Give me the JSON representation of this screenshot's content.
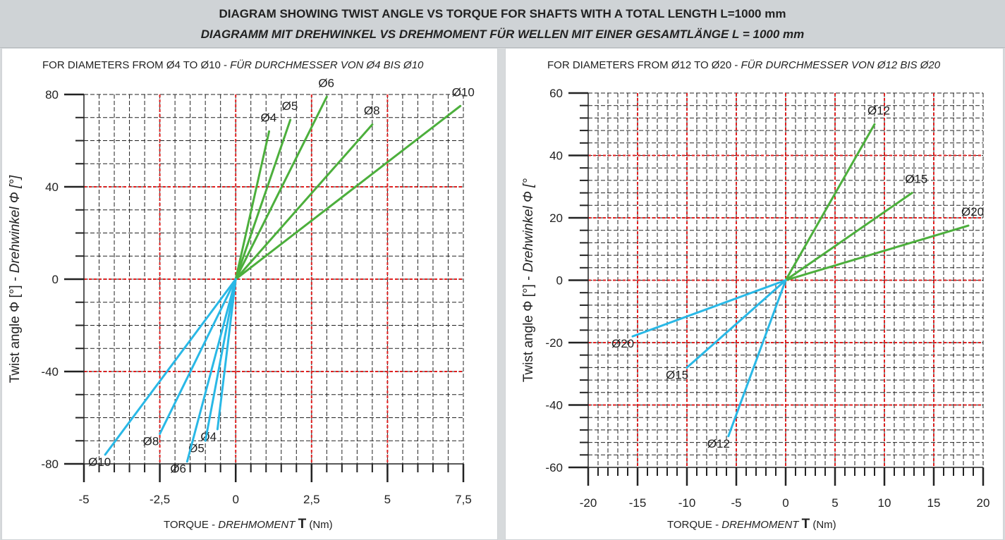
{
  "header": {
    "title_en": "DIAGRAM SHOWING TWIST ANGLE VS TORQUE FOR SHAFTS WITH A TOTAL LENGTH L=1000 mm",
    "title_de": "DIAGRAMM MIT DREHWINKEL VS DREHMOMENT FÜR WELLEN MIT EINER GESAMTLÄNGE L = 1000 mm"
  },
  "colors": {
    "positive": "#4caf3c",
    "negative": "#29b8e6",
    "major_grid": "#e02020",
    "minor_grid": "#222222"
  },
  "chart_data": [
    {
      "type": "line",
      "subtitle_en": "FOR DIAMETERS FROM Ø4 TO Ø10 - ",
      "subtitle_de": "FÜR DURCHMESSER VON Ø4 BIS Ø10",
      "xlabel_pre": "TORQUE - ",
      "xlabel_it": "DREHMOMENT ",
      "xlabel_sym": "T",
      "xlabel_unit": " (Nm)",
      "ylabel_pre": "Twist angle Φ [°] - ",
      "ylabel_it": "Drehwinkel Φ [°]",
      "xlim": [
        -5,
        7.5
      ],
      "ylim": [
        -80,
        80
      ],
      "x_ticks": [
        -5,
        -2.5,
        0,
        2.5,
        5,
        7.5
      ],
      "x_tick_labels": [
        "-5",
        "-2,5",
        "0",
        "2,5",
        "5",
        "7,5"
      ],
      "y_ticks": [
        -80,
        -40,
        0,
        40,
        80
      ],
      "y_tick_labels": [
        "-80",
        "-40",
        "0",
        "40",
        "80"
      ],
      "major_x": [
        -2.5,
        0,
        2.5,
        5
      ],
      "major_y": [
        -40,
        0,
        40
      ],
      "minor_x_step": 0.5,
      "minor_y_step": 10,
      "series": [
        {
          "name": "Ø4",
          "kind": "positive",
          "x": [
            0,
            1.1
          ],
          "y": [
            0,
            64
          ]
        },
        {
          "name": "Ø5",
          "kind": "positive",
          "x": [
            0,
            1.8
          ],
          "y": [
            0,
            69
          ]
        },
        {
          "name": "Ø6",
          "kind": "positive",
          "x": [
            0,
            3.0
          ],
          "y": [
            0,
            79
          ]
        },
        {
          "name": "Ø8",
          "kind": "positive",
          "x": [
            0,
            4.5
          ],
          "y": [
            0,
            67
          ]
        },
        {
          "name": "Ø10",
          "kind": "positive",
          "x": [
            0,
            7.4
          ],
          "y": [
            0,
            75
          ]
        },
        {
          "name": "Ø4",
          "kind": "negative",
          "x": [
            0,
            -0.6
          ],
          "y": [
            0,
            -65
          ]
        },
        {
          "name": "Ø5",
          "kind": "negative",
          "x": [
            0,
            -1.0
          ],
          "y": [
            0,
            -70
          ]
        },
        {
          "name": "Ø6",
          "kind": "negative",
          "x": [
            0,
            -1.6
          ],
          "y": [
            0,
            -79
          ]
        },
        {
          "name": "Ø8",
          "kind": "negative",
          "x": [
            0,
            -2.5
          ],
          "y": [
            0,
            -67
          ]
        },
        {
          "name": "Ø10",
          "kind": "negative",
          "x": [
            0,
            -4.3
          ],
          "y": [
            0,
            -76
          ]
        }
      ]
    },
    {
      "type": "line",
      "subtitle_en": "FOR DIAMETERS FROM Ø12 TO Ø20 - ",
      "subtitle_de": "FÜR DURCHMESSER VON Ø12 BIS Ø20",
      "xlabel_pre": "TORQUE - ",
      "xlabel_it": "DREHMOMENT ",
      "xlabel_sym": "T",
      "xlabel_unit": " (Nm)",
      "ylabel_pre": "Twist angle Φ [°] - ",
      "ylabel_it": "Drehwinkel Φ [°",
      "xlim": [
        -20,
        20
      ],
      "ylim": [
        -60,
        60
      ],
      "x_ticks": [
        -20,
        -15,
        -10,
        -5,
        0,
        5,
        10,
        15,
        20
      ],
      "x_tick_labels": [
        "-20",
        "-15",
        "-10",
        "-5",
        "0",
        "5",
        "10",
        "15",
        "20"
      ],
      "y_ticks": [
        -60,
        -40,
        -20,
        0,
        20,
        40,
        60
      ],
      "y_tick_labels": [
        "-60",
        "-40",
        "-20",
        "0",
        "20",
        "40",
        "60"
      ],
      "major_x": [
        -15,
        -10,
        -5,
        0,
        5,
        10,
        15
      ],
      "major_y": [
        -40,
        -20,
        0,
        20,
        40
      ],
      "minor_x_step": 1,
      "minor_y_step": 4,
      "series": [
        {
          "name": "Ø12",
          "kind": "positive",
          "x": [
            0,
            9.0
          ],
          "y": [
            0,
            50
          ]
        },
        {
          "name": "Ø15",
          "kind": "positive",
          "x": [
            0,
            12.8
          ],
          "y": [
            0,
            28
          ]
        },
        {
          "name": "Ø20",
          "kind": "positive",
          "x": [
            0,
            18.5
          ],
          "y": [
            0,
            17.5
          ]
        },
        {
          "name": "Ø12",
          "kind": "negative",
          "x": [
            0,
            -5.8
          ],
          "y": [
            0,
            -50
          ]
        },
        {
          "name": "Ø15",
          "kind": "negative",
          "x": [
            0,
            -10.0
          ],
          "y": [
            0,
            -28
          ]
        },
        {
          "name": "Ø20",
          "kind": "negative",
          "x": [
            0,
            -15.5
          ],
          "y": [
            0,
            -18
          ]
        }
      ]
    }
  ]
}
